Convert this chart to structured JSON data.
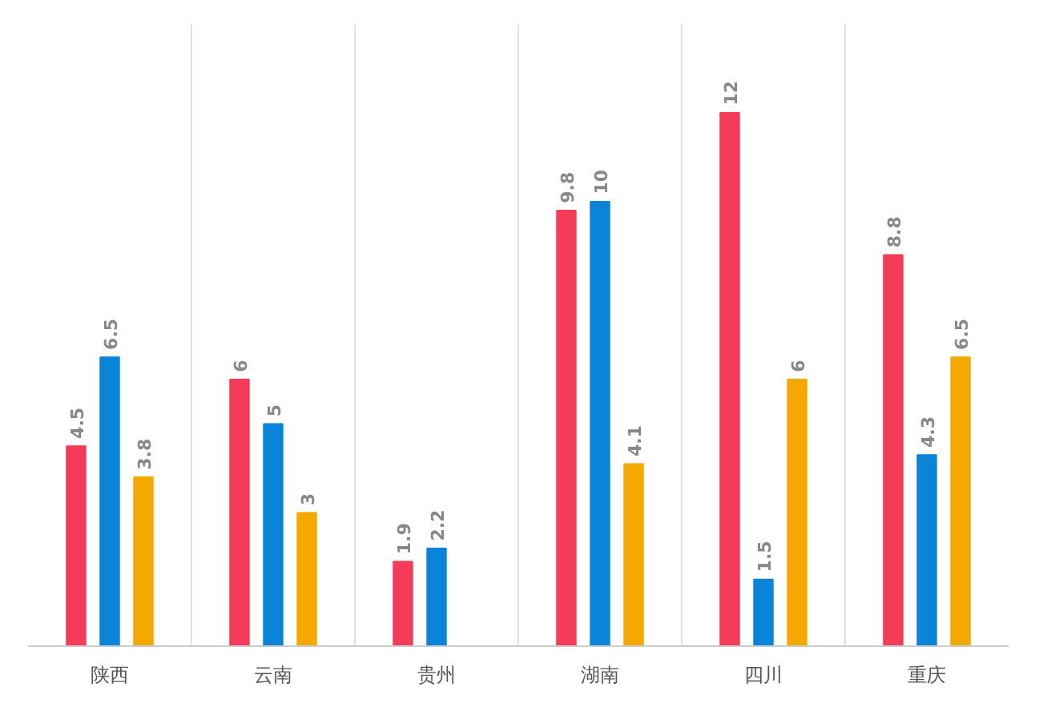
{
  "chart_data": {
    "type": "bar",
    "categories": [
      "陕西",
      "云南",
      "贵州",
      "湖南",
      "四川",
      "重庆"
    ],
    "series": [
      {
        "color": "#f43b57",
        "values": [
          4.5,
          6,
          1.9,
          9.8,
          12,
          8.8
        ]
      },
      {
        "color": "#0a84d8",
        "values": [
          6.5,
          5,
          2.2,
          10,
          1.5,
          4.3
        ]
      },
      {
        "color": "#f5a800",
        "values": [
          3.8,
          3,
          null,
          4.1,
          6,
          6.5
        ]
      }
    ],
    "data_labels": true,
    "grid": "x"
  }
}
